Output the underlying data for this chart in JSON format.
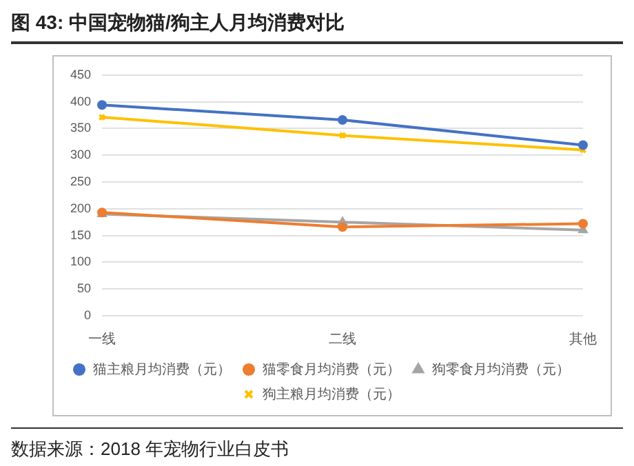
{
  "chart_data": {
    "type": "line",
    "title": "图 43:  中国宠物猫/狗主人月均消费对比",
    "categories": [
      "一线",
      "二线",
      "其他"
    ],
    "series": [
      {
        "name": "猫主粮月均消费（元）",
        "color": "#4472c4",
        "marker": "circle",
        "values": [
          394,
          366,
          319
        ]
      },
      {
        "name": "猫零食月均消费（元）",
        "color": "#ed7d31",
        "marker": "circle",
        "values": [
          193,
          166,
          172
        ]
      },
      {
        "name": "狗零食月均消费（元）",
        "color": "#a5a5a5",
        "marker": "triangle",
        "values": [
          190,
          175,
          160
        ]
      },
      {
        "name": "狗主粮月均消费（元）",
        "color": "#ffc000",
        "marker": "cross",
        "values": [
          371,
          337,
          310
        ]
      }
    ],
    "ylim": [
      0,
      450
    ],
    "yticks": [
      0,
      50,
      100,
      150,
      200,
      250,
      300,
      350,
      400,
      450
    ],
    "grid": "y",
    "legend": "bottom",
    "annotations": [
      "数据来源：2018 年宠物行业白皮书"
    ]
  }
}
